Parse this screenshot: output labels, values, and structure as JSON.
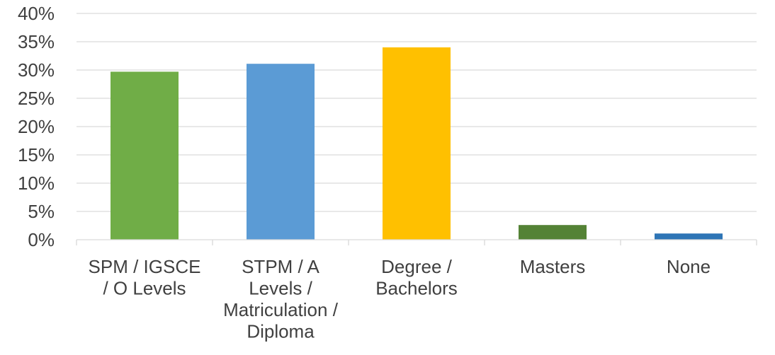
{
  "chart_data": {
    "type": "bar",
    "title": "",
    "xlabel": "",
    "ylabel": "",
    "categories": [
      [
        "SPM / IGSCE",
        "/ O Levels"
      ],
      [
        "STPM / A",
        "Levels /",
        "Matriculation /",
        "Diploma"
      ],
      [
        "Degree /",
        "Bachelors"
      ],
      [
        "Masters"
      ],
      [
        "None"
      ]
    ],
    "values": [
      29.7,
      31.1,
      34.0,
      2.6,
      1.1
    ],
    "colors": [
      "#70ad47",
      "#5b9bd5",
      "#ffc000",
      "#548235",
      "#2e75b6"
    ],
    "ylim": [
      0,
      40
    ],
    "y_ticks": [
      0,
      5,
      10,
      15,
      20,
      25,
      30,
      35,
      40
    ],
    "y_tick_labels": [
      "0%",
      "5%",
      "10%",
      "15%",
      "20%",
      "25%",
      "30%",
      "35%",
      "40%"
    ],
    "grid": true,
    "legend": "none"
  }
}
